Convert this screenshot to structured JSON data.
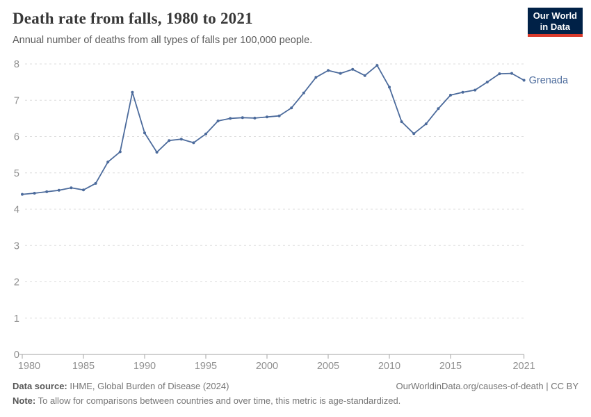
{
  "header": {
    "title": "Death rate from falls, 1980 to 2021",
    "subtitle": "Annual number of deaths from all types of falls per 100,000 people.",
    "logo": {
      "line1": "Our World",
      "line2": "in Data"
    }
  },
  "colors": {
    "series_blue": "#4C6B9C",
    "grid": "#dcdcdc",
    "axis": "#a3a3a3",
    "tick_text": "#8f8f8f",
    "logo_bg": "#002147",
    "logo_accent": "#D93A2B"
  },
  "chart_data": {
    "type": "line",
    "title": "Death rate from falls, 1980 to 2021",
    "xlabel": "",
    "ylabel": "",
    "xlim": [
      1980,
      2021
    ],
    "ylim": [
      0,
      8
    ],
    "grid": "horizontal-dashed",
    "legend_position": "end-of-line-label",
    "xticks": [
      1980,
      1985,
      1990,
      1995,
      2000,
      2005,
      2010,
      2015,
      2021
    ],
    "yticks": [
      0,
      1,
      2,
      3,
      4,
      5,
      6,
      7,
      8
    ],
    "x": [
      1980,
      1981,
      1982,
      1983,
      1984,
      1985,
      1986,
      1987,
      1988,
      1989,
      1990,
      1991,
      1992,
      1993,
      1994,
      1995,
      1996,
      1997,
      1998,
      1999,
      2000,
      2001,
      2002,
      2003,
      2004,
      2005,
      2006,
      2007,
      2008,
      2009,
      2010,
      2011,
      2012,
      2013,
      2014,
      2015,
      2016,
      2017,
      2018,
      2019,
      2020,
      2021
    ],
    "series": [
      {
        "name": "Grenada",
        "color": "#4C6B9C",
        "values": [
          4.41,
          4.44,
          4.48,
          4.52,
          4.59,
          4.53,
          4.71,
          5.3,
          5.58,
          7.22,
          6.1,
          5.57,
          5.89,
          5.93,
          5.83,
          6.07,
          6.43,
          6.5,
          6.52,
          6.51,
          6.54,
          6.57,
          6.79,
          7.2,
          7.63,
          7.82,
          7.74,
          7.85,
          7.68,
          7.96,
          7.36,
          6.41,
          6.08,
          6.35,
          6.77,
          7.14,
          7.22,
          7.28,
          7.5,
          7.73,
          7.74,
          7.55
        ]
      }
    ]
  },
  "footer": {
    "source_label": "Data source:",
    "source_text": " IHME, Global Burden of Disease (2024)",
    "note_label": "Note:",
    "note_text": " To allow for comparisons between countries and over time, this metric is age-standardized.",
    "right_text": "OurWorldinData.org/causes-of-death | CC BY"
  }
}
